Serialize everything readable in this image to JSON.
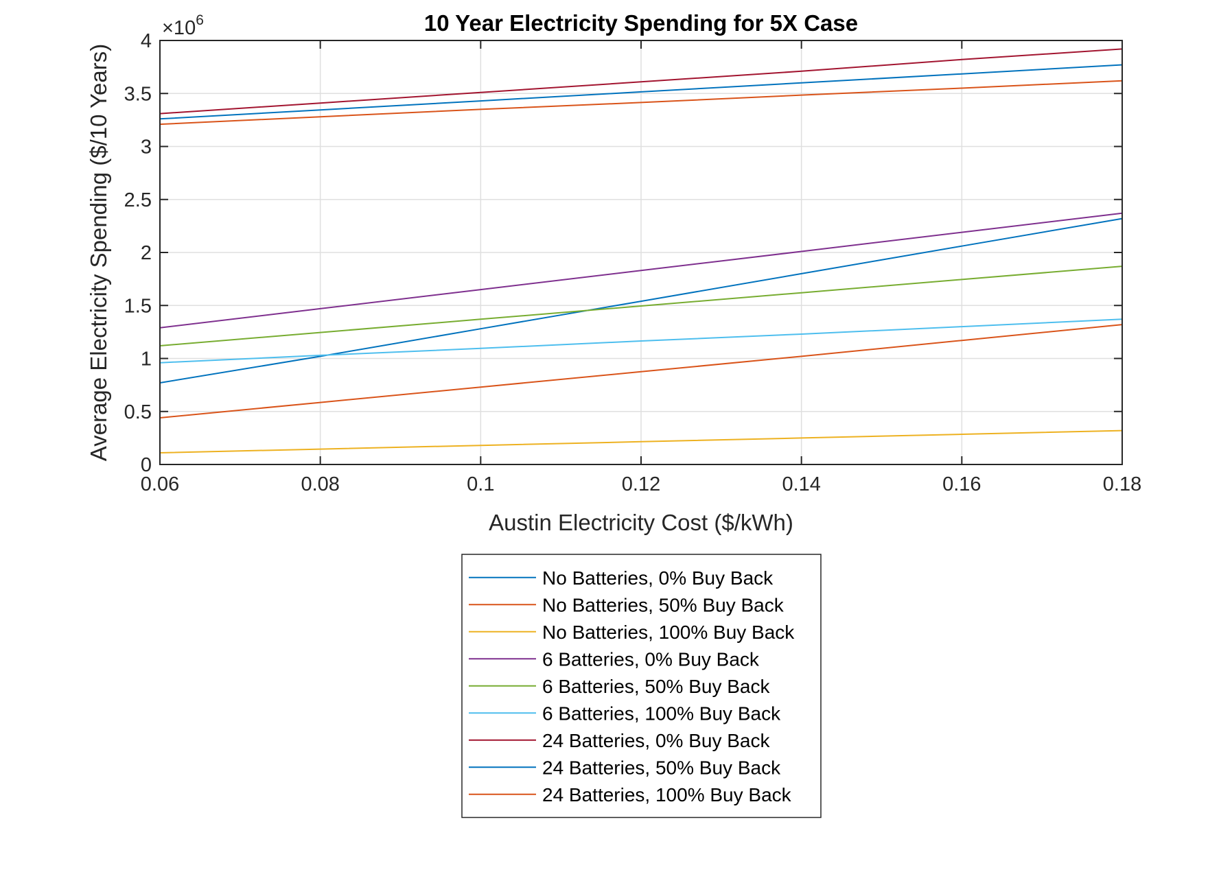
{
  "chart_data": {
    "type": "line",
    "title": "10 Year Electricity Spending for 5X Case",
    "xlabel": "Austin Electricity Cost ($/kWh)",
    "ylabel": "Average Electricity Spending ($/10 Years)",
    "y_exponent_base": "×10",
    "y_exponent_power": "6",
    "xlim": [
      0.06,
      0.18
    ],
    "ylim": [
      0,
      4
    ],
    "x_ticks": [
      0.06,
      0.08,
      0.1,
      0.12,
      0.14,
      0.16,
      0.18
    ],
    "x_tick_labels": [
      "0.06",
      "0.08",
      "0.1",
      "0.12",
      "0.14",
      "0.16",
      "0.18"
    ],
    "y_ticks": [
      0,
      0.5,
      1,
      1.5,
      2,
      2.5,
      3,
      3.5,
      4
    ],
    "y_tick_labels": [
      "0",
      "0.5",
      "1",
      "1.5",
      "2",
      "2.5",
      "3",
      "3.5",
      "4"
    ],
    "grid": true,
    "legend_position": "bottom-outside",
    "x": [
      0.06,
      0.08,
      0.1,
      0.12,
      0.14,
      0.16,
      0.18
    ],
    "series": [
      {
        "name": "No Batteries, 0% Buy Back",
        "color": "#0072BD",
        "values": [
          0.77,
          1.02,
          1.28,
          1.54,
          1.8,
          2.06,
          2.32
        ]
      },
      {
        "name": "No Batteries, 50% Buy Back",
        "color": "#D95319",
        "values": [
          0.44,
          0.585,
          0.73,
          0.875,
          1.02,
          1.17,
          1.32
        ]
      },
      {
        "name": "No Batteries, 100% Buy Back",
        "color": "#EDB120",
        "values": [
          0.11,
          0.145,
          0.18,
          0.215,
          0.25,
          0.285,
          0.32
        ]
      },
      {
        "name": "6 Batteries, 0% Buy Back",
        "color": "#7E2F8E",
        "values": [
          1.29,
          1.47,
          1.65,
          1.83,
          2.01,
          2.19,
          2.37
        ]
      },
      {
        "name": "6 Batteries, 50% Buy Back",
        "color": "#77AC30",
        "values": [
          1.12,
          1.245,
          1.37,
          1.495,
          1.62,
          1.745,
          1.87
        ]
      },
      {
        "name": "6 Batteries, 100% Buy Back",
        "color": "#4DBEEE",
        "values": [
          0.96,
          1.03,
          1.095,
          1.165,
          1.23,
          1.3,
          1.37
        ]
      },
      {
        "name": "24 Batteries, 0% Buy Back",
        "color": "#A2142F",
        "values": [
          3.31,
          3.41,
          3.51,
          3.61,
          3.71,
          3.82,
          3.92
        ]
      },
      {
        "name": "24 Batteries, 50% Buy Back",
        "color": "#0072BD",
        "values": [
          3.26,
          3.345,
          3.43,
          3.515,
          3.6,
          3.685,
          3.77
        ]
      },
      {
        "name": "24 Batteries, 100% Buy Back",
        "color": "#D95319",
        "values": [
          3.21,
          3.28,
          3.35,
          3.415,
          3.485,
          3.55,
          3.62
        ]
      }
    ]
  }
}
